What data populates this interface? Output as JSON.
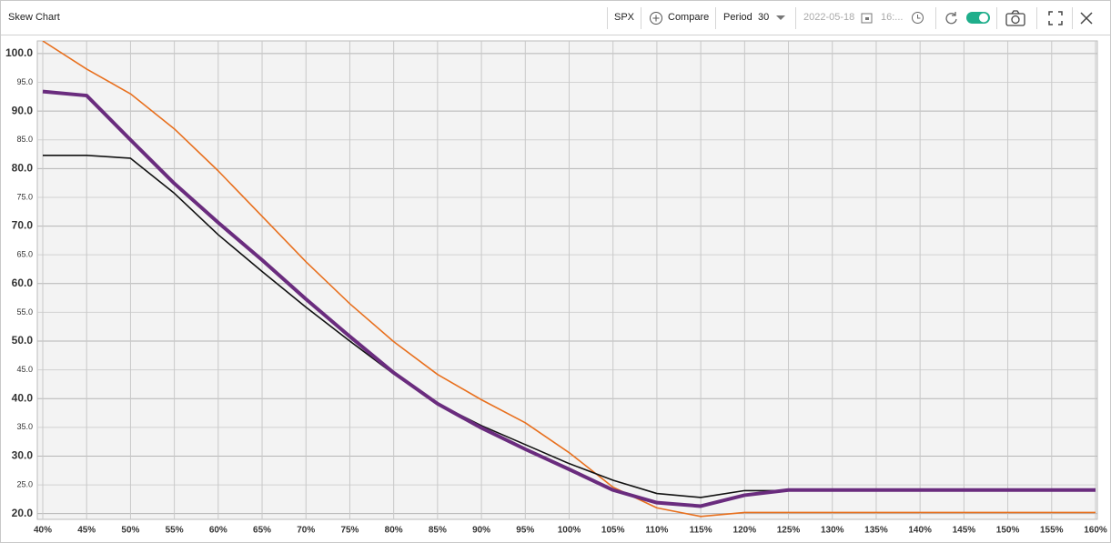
{
  "toolbar": {
    "symbol": "SPX",
    "compare": "Compare",
    "period_label": "Period",
    "period_value": "30",
    "date": "2022-05-18",
    "time": "16:..."
  },
  "chart_data": {
    "type": "line",
    "title": "Skew Chart",
    "categories": [
      "40%",
      "45%",
      "50%",
      "55%",
      "60%",
      "65%",
      "70%",
      "75%",
      "80%",
      "85%",
      "90%",
      "95%",
      "100%",
      "105%",
      "110%",
      "115%",
      "120%",
      "125%",
      "130%",
      "135%",
      "140%",
      "145%",
      "150%",
      "155%",
      "160%"
    ],
    "series": [
      {
        "color": "#e8701e",
        "width": 1.6,
        "values": [
          102.2,
          97.3,
          93.0,
          86.9,
          79.6,
          71.7,
          63.8,
          56.5,
          49.9,
          44.2,
          39.8,
          35.8,
          30.6,
          24.6,
          21.0,
          19.5,
          20.2,
          20.2,
          20.2,
          20.2,
          20.2,
          20.2,
          20.2,
          20.2,
          20.2
        ]
      },
      {
        "color": "#111111",
        "width": 1.6,
        "values": [
          82.3,
          82.3,
          81.8,
          75.7,
          68.5,
          62.1,
          55.9,
          50.0,
          44.3,
          39.1,
          35.3,
          32.0,
          28.7,
          25.8,
          23.5,
          22.8,
          24.0,
          24.0,
          24.0,
          24.0,
          24.0,
          24.0,
          24.0,
          24.0,
          24.0
        ]
      },
      {
        "color": "#6a2c7e",
        "width": 4,
        "values": [
          93.4,
          92.7,
          85.0,
          77.4,
          70.6,
          64.1,
          57.3,
          50.8,
          44.5,
          39.1,
          34.9,
          31.2,
          27.7,
          24.1,
          21.9,
          21.3,
          23.2,
          24.1,
          24.1,
          24.1,
          24.1,
          24.1,
          24.1,
          24.1,
          24.1
        ]
      }
    ],
    "ylim": [
      19,
      102.2
    ],
    "yticks": [
      {
        "value": 20,
        "label": "20.0"
      },
      {
        "value": 25,
        "label": "25.0"
      },
      {
        "value": 30,
        "label": "30.0"
      },
      {
        "value": 35,
        "label": "35.0"
      },
      {
        "value": 40,
        "label": "40.0"
      },
      {
        "value": 45,
        "label": "45.0"
      },
      {
        "value": 50,
        "label": "50.0"
      },
      {
        "value": 55,
        "label": "55.0"
      },
      {
        "value": 60,
        "label": "60.0"
      },
      {
        "value": 65,
        "label": "65.0"
      },
      {
        "value": 70,
        "label": "70.0"
      },
      {
        "value": 75,
        "label": "75.0"
      },
      {
        "value": 80,
        "label": "80.0"
      },
      {
        "value": 85,
        "label": "85.0"
      },
      {
        "value": 90,
        "label": "90.0"
      },
      {
        "value": 95,
        "label": "95.0"
      },
      {
        "value": 100,
        "label": "100.0"
      }
    ],
    "grid": true
  }
}
